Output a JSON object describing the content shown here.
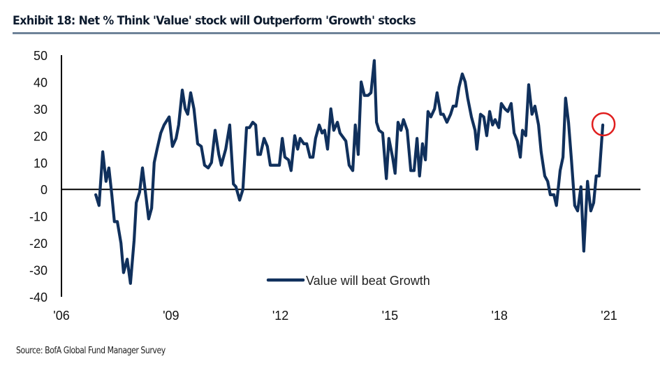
{
  "title": "Exhibit 18: Net % Think 'Value' stock will Outperform 'Growth' stocks",
  "source": "Source: BofA Global Fund Manager Survey",
  "colors": {
    "line": "#10305c",
    "highlight_circle": "#e01e1e",
    "axis": "#000000",
    "title_rule": "#6f8399"
  },
  "chart_data": {
    "type": "line",
    "title": "Exhibit 18: Net % Think 'Value' stock will Outperform 'Growth' stocks",
    "xlabel": "",
    "ylabel": "",
    "xlim": [
      2006,
      2021
    ],
    "ylim": [
      -40,
      50
    ],
    "x_ticks": [
      2006,
      2009,
      2012,
      2015,
      2018,
      2021
    ],
    "x_tick_labels": [
      "'06",
      "'09",
      "'12",
      "'15",
      "'18",
      "'21"
    ],
    "y_ticks": [
      50,
      40,
      30,
      20,
      10,
      0,
      -10,
      -20,
      -30,
      -40
    ],
    "y_tick_labels": [
      "50",
      "40",
      "30",
      "20",
      "10",
      "0",
      "-10",
      "-20",
      "-30",
      "-40"
    ],
    "grid": false,
    "zero_line": true,
    "legend": {
      "position": "bottom-center",
      "entries": [
        "Value will beat Growth"
      ]
    },
    "annotation": {
      "type": "circle",
      "target": "latest point",
      "x": 2020.83,
      "y": 24
    },
    "series": [
      {
        "name": "Value will beat Growth",
        "points": [
          [
            2006.94,
            -2
          ],
          [
            2007.03,
            -6
          ],
          [
            2007.13,
            14
          ],
          [
            2007.22,
            3
          ],
          [
            2007.3,
            8
          ],
          [
            2007.38,
            -2
          ],
          [
            2007.45,
            -12
          ],
          [
            2007.53,
            -12
          ],
          [
            2007.63,
            -20
          ],
          [
            2007.7,
            -31
          ],
          [
            2007.8,
            -26
          ],
          [
            2007.89,
            -35
          ],
          [
            2007.99,
            -19
          ],
          [
            2008.05,
            -5
          ],
          [
            2008.14,
            -1
          ],
          [
            2008.22,
            8
          ],
          [
            2008.3,
            -1
          ],
          [
            2008.39,
            -11
          ],
          [
            2008.47,
            -7
          ],
          [
            2008.54,
            10
          ],
          [
            2008.62,
            15
          ],
          [
            2008.72,
            21
          ],
          [
            2008.81,
            24
          ],
          [
            2008.95,
            27
          ],
          [
            2009.04,
            16
          ],
          [
            2009.14,
            19
          ],
          [
            2009.21,
            24
          ],
          [
            2009.31,
            37
          ],
          [
            2009.39,
            30
          ],
          [
            2009.46,
            28
          ],
          [
            2009.54,
            36
          ],
          [
            2009.63,
            30
          ],
          [
            2009.73,
            17
          ],
          [
            2009.83,
            16
          ],
          [
            2009.92,
            9
          ],
          [
            2010.02,
            8
          ],
          [
            2010.11,
            10
          ],
          [
            2010.21,
            22
          ],
          [
            2010.31,
            13
          ],
          [
            2010.38,
            9
          ],
          [
            2010.5,
            15
          ],
          [
            2010.61,
            24
          ],
          [
            2010.71,
            2
          ],
          [
            2010.78,
            1
          ],
          [
            2010.88,
            -4
          ],
          [
            2010.97,
            0
          ],
          [
            2011.07,
            23
          ],
          [
            2011.15,
            23
          ],
          [
            2011.24,
            25
          ],
          [
            2011.32,
            24
          ],
          [
            2011.38,
            13
          ],
          [
            2011.45,
            13
          ],
          [
            2011.55,
            19
          ],
          [
            2011.64,
            16
          ],
          [
            2011.72,
            9
          ],
          [
            2011.84,
            9
          ],
          [
            2011.97,
            9
          ],
          [
            2012.05,
            19
          ],
          [
            2012.12,
            12
          ],
          [
            2012.22,
            11
          ],
          [
            2012.29,
            7
          ],
          [
            2012.39,
            20
          ],
          [
            2012.47,
            15
          ],
          [
            2012.54,
            19
          ],
          [
            2012.64,
            17
          ],
          [
            2012.72,
            17
          ],
          [
            2012.81,
            12
          ],
          [
            2012.89,
            12
          ],
          [
            2012.96,
            19
          ],
          [
            2013.06,
            24
          ],
          [
            2013.14,
            21
          ],
          [
            2013.21,
            22
          ],
          [
            2013.29,
            15
          ],
          [
            2013.38,
            30
          ],
          [
            2013.46,
            22
          ],
          [
            2013.56,
            25
          ],
          [
            2013.63,
            21
          ],
          [
            2013.79,
            18
          ],
          [
            2013.88,
            9
          ],
          [
            2013.98,
            7
          ],
          [
            2014.05,
            24
          ],
          [
            2014.13,
            13
          ],
          [
            2014.21,
            40
          ],
          [
            2014.3,
            35
          ],
          [
            2014.4,
            35
          ],
          [
            2014.48,
            36
          ],
          [
            2014.57,
            48
          ],
          [
            2014.63,
            25
          ],
          [
            2014.7,
            22
          ],
          [
            2014.8,
            21
          ],
          [
            2014.9,
            4
          ],
          [
            2014.97,
            19
          ],
          [
            2015.07,
            12
          ],
          [
            2015.14,
            6
          ],
          [
            2015.22,
            25
          ],
          [
            2015.3,
            22
          ],
          [
            2015.37,
            26
          ],
          [
            2015.47,
            22
          ],
          [
            2015.57,
            7
          ],
          [
            2015.66,
            7
          ],
          [
            2015.74,
            19
          ],
          [
            2015.81,
            5
          ],
          [
            2015.89,
            17
          ],
          [
            2015.97,
            11
          ],
          [
            2016.04,
            29
          ],
          [
            2016.12,
            27
          ],
          [
            2016.22,
            30
          ],
          [
            2016.29,
            36
          ],
          [
            2016.39,
            28
          ],
          [
            2016.46,
            28
          ],
          [
            2016.56,
            25
          ],
          [
            2016.66,
            28
          ],
          [
            2016.73,
            31
          ],
          [
            2016.81,
            31
          ],
          [
            2016.89,
            38
          ],
          [
            2016.98,
            43
          ],
          [
            2017.06,
            40
          ],
          [
            2017.13,
            34
          ],
          [
            2017.23,
            27
          ],
          [
            2017.33,
            22
          ],
          [
            2017.38,
            15
          ],
          [
            2017.48,
            28
          ],
          [
            2017.57,
            27
          ],
          [
            2017.65,
            20
          ],
          [
            2017.73,
            29
          ],
          [
            2017.81,
            24
          ],
          [
            2017.88,
            26
          ],
          [
            2017.98,
            23
          ],
          [
            2018.05,
            32
          ],
          [
            2018.15,
            30
          ],
          [
            2018.23,
            29
          ],
          [
            2018.32,
            32
          ],
          [
            2018.4,
            21
          ],
          [
            2018.49,
            18
          ],
          [
            2018.57,
            12
          ],
          [
            2018.63,
            22
          ],
          [
            2018.72,
            20
          ],
          [
            2018.8,
            39
          ],
          [
            2018.89,
            28
          ],
          [
            2018.97,
            31
          ],
          [
            2019.07,
            24
          ],
          [
            2019.14,
            14
          ],
          [
            2019.24,
            5
          ],
          [
            2019.32,
            3
          ],
          [
            2019.39,
            -2
          ],
          [
            2019.49,
            -2
          ],
          [
            2019.56,
            -6
          ],
          [
            2019.66,
            7
          ],
          [
            2019.74,
            12
          ],
          [
            2019.81,
            34
          ],
          [
            2019.89,
            25
          ],
          [
            2019.97,
            11
          ],
          [
            2020.06,
            -6
          ],
          [
            2020.14,
            -8
          ],
          [
            2020.23,
            1
          ],
          [
            2020.31,
            -23
          ],
          [
            2020.41,
            3
          ],
          [
            2020.5,
            -8
          ],
          [
            2020.58,
            -5
          ],
          [
            2020.65,
            5
          ],
          [
            2020.73,
            5
          ],
          [
            2020.83,
            24
          ]
        ]
      }
    ]
  }
}
